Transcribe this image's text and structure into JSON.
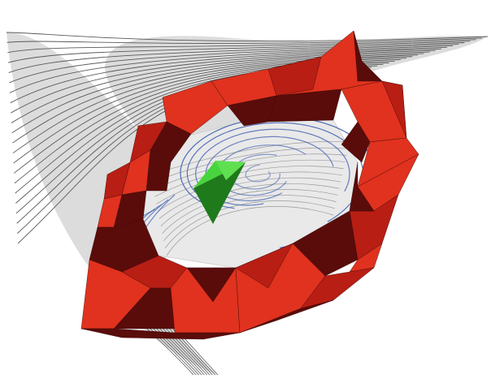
{
  "figure": {
    "colors": {
      "background": "#ffffff",
      "surface_fill": "#d9d9d9",
      "surface_line": "#5a5a5a",
      "inner_surface": "#e6e6e6",
      "red_light": "#e0321e",
      "red_mid": "#b81e14",
      "red_dark": "#5a0c0a",
      "blue_streamline": "#3f5fb0",
      "green_light": "#44d13a",
      "green_dark": "#1b6e18"
    },
    "icons": [
      "grey-swept-surface",
      "red-faceted-ring",
      "blue-spiral-streamlines",
      "green-tetrahedron"
    ]
  }
}
